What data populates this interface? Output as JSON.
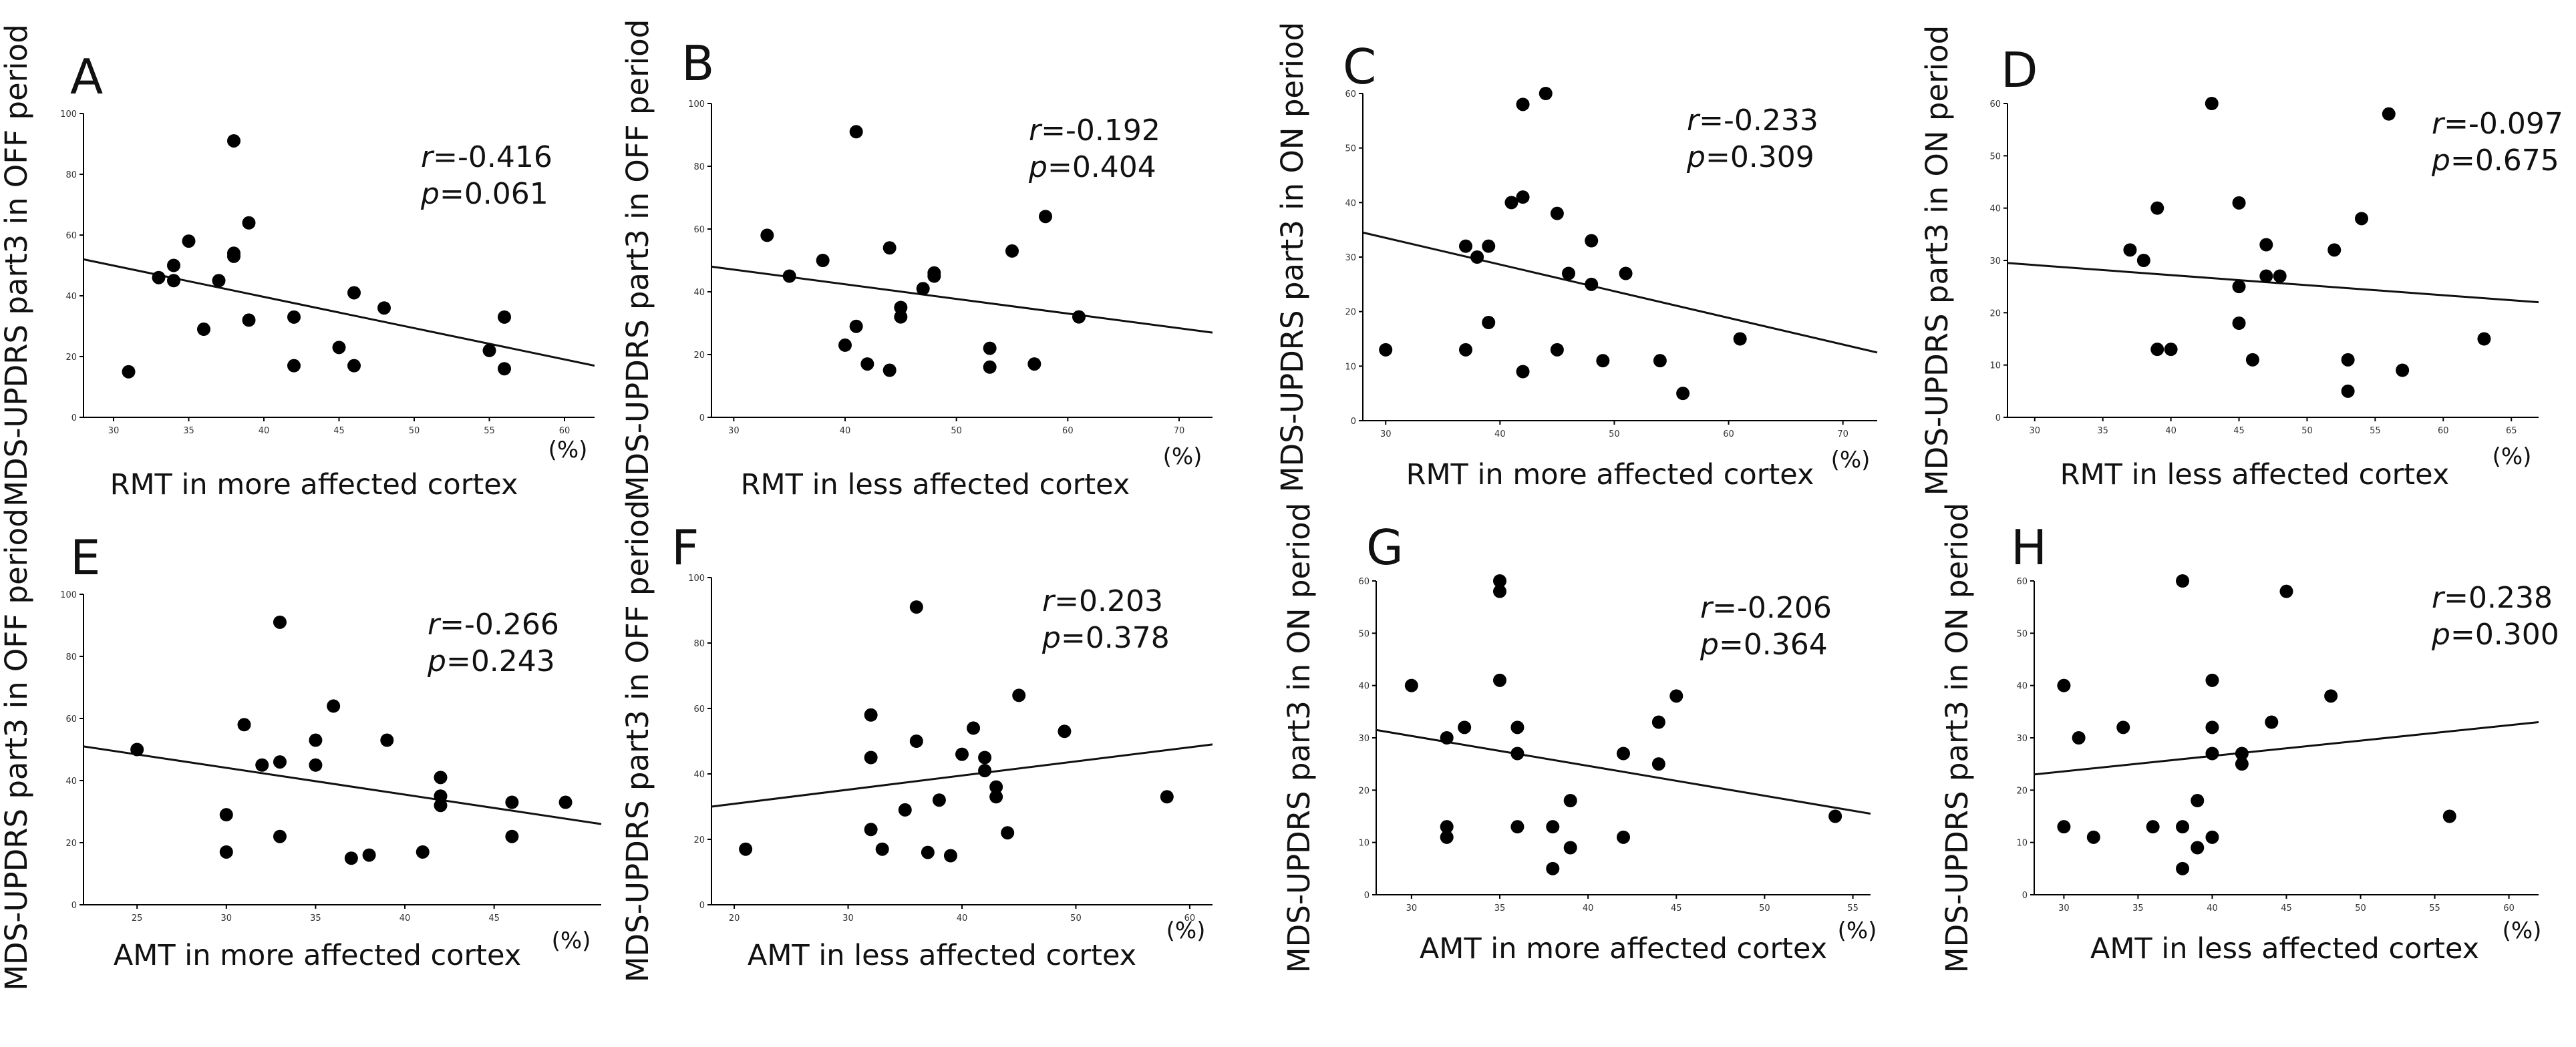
{
  "chart_data": [
    {
      "id": "A",
      "type": "scatter",
      "title": "A",
      "ylabel": "MDS-UPDRS  part3 in OFF period",
      "xlabel": "RMT in more affected cortex",
      "unit": "(%)",
      "xlim": [
        28,
        62
      ],
      "ylim": [
        0,
        100
      ],
      "xticks": [
        30,
        35,
        40,
        45,
        50,
        55,
        60
      ],
      "yticks": [
        0,
        20,
        40,
        60,
        80,
        100
      ],
      "stat_r": "-0.416",
      "stat_p": "0.061",
      "regression": [
        [
          28,
          52
        ],
        [
          62,
          17
        ]
      ],
      "points": [
        [
          31,
          15
        ],
        [
          33,
          46
        ],
        [
          34,
          50
        ],
        [
          34,
          45
        ],
        [
          35,
          58
        ],
        [
          36,
          29
        ],
        [
          37,
          45
        ],
        [
          38,
          91
        ],
        [
          38,
          54
        ],
        [
          38,
          53
        ],
        [
          39,
          64
        ],
        [
          39,
          32
        ],
        [
          42,
          33
        ],
        [
          42,
          17
        ],
        [
          45,
          23
        ],
        [
          46,
          41
        ],
        [
          46,
          17
        ],
        [
          48,
          36
        ],
        [
          55,
          22
        ],
        [
          56,
          33
        ],
        [
          56,
          16
        ]
      ]
    },
    {
      "id": "B",
      "type": "scatter",
      "title": "B",
      "ylabel": "MDS-UPDRS  part3 in OFF period",
      "xlabel": "RMT in less affected cortex",
      "unit": "(%)",
      "xlim": [
        28,
        73
      ],
      "ylim": [
        0,
        100
      ],
      "xticks": [
        30,
        40,
        50,
        60,
        70
      ],
      "yticks": [
        0,
        20,
        40,
        60,
        80,
        100
      ],
      "stat_r": "-0.192",
      "stat_p": "0.404",
      "regression": [
        [
          28,
          48
        ],
        [
          73,
          27
        ]
      ],
      "points": [
        [
          33,
          58
        ],
        [
          35,
          45
        ],
        [
          38,
          50
        ],
        [
          40,
          23
        ],
        [
          41,
          29
        ],
        [
          41,
          91
        ],
        [
          42,
          17
        ],
        [
          44,
          54
        ],
        [
          44,
          15
        ],
        [
          45,
          32
        ],
        [
          45,
          35
        ],
        [
          47,
          41
        ],
        [
          48,
          45
        ],
        [
          48,
          46
        ],
        [
          53,
          22
        ],
        [
          53,
          16
        ],
        [
          55,
          53
        ],
        [
          57,
          17
        ],
        [
          58,
          64
        ],
        [
          61,
          32
        ]
      ]
    },
    {
      "id": "C",
      "type": "scatter",
      "title": "C",
      "ylabel": "MDS-UPDRS  part3 in ON period",
      "xlabel": "RMT in more affected cortex",
      "unit": "(%)",
      "xlim": [
        28,
        73
      ],
      "ylim": [
        0,
        60
      ],
      "xticks": [
        30,
        40,
        50,
        60,
        70
      ],
      "yticks": [
        0,
        10,
        20,
        30,
        40,
        50,
        60
      ],
      "stat_r": "-0.233",
      "stat_p": "0.309",
      "regression": [
        [
          28,
          34.5
        ],
        [
          73,
          12.5
        ]
      ],
      "points": [
        [
          30,
          13
        ],
        [
          37,
          32
        ],
        [
          37,
          13
        ],
        [
          38,
          30
        ],
        [
          39,
          32
        ],
        [
          39,
          18
        ],
        [
          41,
          40
        ],
        [
          42,
          41
        ],
        [
          42,
          58
        ],
        [
          42,
          9
        ],
        [
          44,
          60
        ],
        [
          45,
          38
        ],
        [
          45,
          13
        ],
        [
          46,
          27
        ],
        [
          48,
          33
        ],
        [
          48,
          25
        ],
        [
          49,
          11
        ],
        [
          51,
          27
        ],
        [
          54,
          11
        ],
        [
          56,
          5
        ],
        [
          61,
          15
        ]
      ]
    },
    {
      "id": "D",
      "type": "scatter",
      "title": "D",
      "ylabel": "MDS-UPDRS  part3 in ON period",
      "xlabel": "RMT in less affected cortex",
      "unit": "(%)",
      "xlim": [
        28,
        67
      ],
      "ylim": [
        0,
        60
      ],
      "xticks": [
        30,
        35,
        40,
        45,
        50,
        55,
        60,
        65
      ],
      "yticks": [
        0,
        10,
        20,
        30,
        40,
        50,
        60
      ],
      "stat_r": "-0.097",
      "stat_p": "0.675",
      "regression": [
        [
          28,
          29.5
        ],
        [
          67,
          22
        ]
      ],
      "points": [
        [
          37,
          32
        ],
        [
          38,
          30
        ],
        [
          39,
          40
        ],
        [
          39,
          13
        ],
        [
          40,
          13
        ],
        [
          43,
          60
        ],
        [
          45,
          41
        ],
        [
          45,
          25
        ],
        [
          45,
          18
        ],
        [
          46,
          11
        ],
        [
          47,
          33
        ],
        [
          47,
          27
        ],
        [
          48,
          27
        ],
        [
          52,
          32
        ],
        [
          53,
          11
        ],
        [
          53,
          5
        ],
        [
          54,
          38
        ],
        [
          56,
          58
        ],
        [
          57,
          9
        ],
        [
          63,
          15
        ]
      ]
    },
    {
      "id": "E",
      "type": "scatter",
      "title": "E",
      "ylabel": "MDS-UPDRS  part3 in OFF period",
      "xlabel": "AMT in more affected cortex",
      "unit": "(%)",
      "xlim": [
        22,
        51
      ],
      "ylim": [
        0,
        100
      ],
      "xticks": [
        25,
        30,
        35,
        40,
        45
      ],
      "yticks": [
        0,
        20,
        40,
        60,
        80,
        100
      ],
      "stat_r": "-0.266",
      "stat_p": "0.243",
      "regression": [
        [
          22,
          51
        ],
        [
          51,
          26
        ]
      ],
      "points": [
        [
          25,
          50
        ],
        [
          30,
          29
        ],
        [
          30,
          17
        ],
        [
          31,
          58
        ],
        [
          32,
          45
        ],
        [
          33,
          46
        ],
        [
          33,
          91
        ],
        [
          33,
          22
        ],
        [
          35,
          53
        ],
        [
          35,
          45
        ],
        [
          36,
          64
        ],
        [
          37,
          15
        ],
        [
          38,
          16
        ],
        [
          39,
          53
        ],
        [
          41,
          17
        ],
        [
          42,
          41
        ],
        [
          42,
          35
        ],
        [
          42,
          32
        ],
        [
          46,
          33
        ],
        [
          46,
          22
        ],
        [
          49,
          33
        ]
      ]
    },
    {
      "id": "F",
      "type": "scatter",
      "title": "F",
      "ylabel": "MDS-UPDRS  part3 in OFF period",
      "xlabel": "AMT in less affected cortex",
      "unit": "(%)",
      "xlim": [
        18,
        62
      ],
      "ylim": [
        0,
        100
      ],
      "xticks": [
        20,
        30,
        40,
        50,
        60
      ],
      "yticks": [
        0,
        20,
        40,
        60,
        80,
        100
      ],
      "stat_r": "0.203",
      "stat_p": "0.378",
      "regression": [
        [
          18,
          30
        ],
        [
          62,
          49
        ]
      ],
      "points": [
        [
          21,
          17
        ],
        [
          32,
          58
        ],
        [
          32,
          45
        ],
        [
          32,
          23
        ],
        [
          33,
          17
        ],
        [
          35,
          29
        ],
        [
          36,
          50
        ],
        [
          36,
          91
        ],
        [
          37,
          16
        ],
        [
          38,
          32
        ],
        [
          39,
          15
        ],
        [
          40,
          46
        ],
        [
          41,
          54
        ],
        [
          42,
          45
        ],
        [
          42,
          41
        ],
        [
          43,
          36
        ],
        [
          43,
          33
        ],
        [
          44,
          22
        ],
        [
          45,
          64
        ],
        [
          49,
          53
        ],
        [
          58,
          33
        ]
      ]
    },
    {
      "id": "G",
      "type": "scatter",
      "title": "G",
      "ylabel": "MDS-UPDRS  part3 in ON period",
      "xlabel": "AMT in more affected cortex",
      "unit": "(%)",
      "xlim": [
        28,
        56
      ],
      "ylim": [
        0,
        60
      ],
      "xticks": [
        30,
        35,
        40,
        45,
        50,
        55
      ],
      "yticks": [
        0,
        10,
        20,
        30,
        40,
        50,
        60
      ],
      "stat_r": "-0.206",
      "stat_p": "0.364",
      "regression": [
        [
          28,
          31.5
        ],
        [
          56,
          15.5
        ]
      ],
      "points": [
        [
          30,
          40
        ],
        [
          32,
          30
        ],
        [
          32,
          13
        ],
        [
          32,
          11
        ],
        [
          33,
          32
        ],
        [
          35,
          60
        ],
        [
          35,
          58
        ],
        [
          35,
          41
        ],
        [
          36,
          32
        ],
        [
          36,
          27
        ],
        [
          36,
          13
        ],
        [
          38,
          13
        ],
        [
          38,
          5
        ],
        [
          39,
          18
        ],
        [
          39,
          9
        ],
        [
          42,
          27
        ],
        [
          42,
          11
        ],
        [
          44,
          33
        ],
        [
          44,
          25
        ],
        [
          45,
          38
        ],
        [
          54,
          15
        ]
      ]
    },
    {
      "id": "H",
      "type": "scatter",
      "title": "H",
      "ylabel": "MDS-UPDRS  part3 in ON period",
      "xlabel": "AMT in less affected cortex",
      "unit": "(%)",
      "xlim": [
        28,
        62
      ],
      "ylim": [
        0,
        60
      ],
      "xticks": [
        30,
        35,
        40,
        45,
        50,
        55,
        60
      ],
      "yticks": [
        0,
        10,
        20,
        30,
        40,
        50,
        60
      ],
      "stat_r": "0.238",
      "stat_p": "0.300",
      "regression": [
        [
          28,
          23
        ],
        [
          62,
          33
        ]
      ],
      "points": [
        [
          30,
          40
        ],
        [
          30,
          13
        ],
        [
          31,
          30
        ],
        [
          32,
          11
        ],
        [
          34,
          32
        ],
        [
          36,
          13
        ],
        [
          38,
          60
        ],
        [
          38,
          13
        ],
        [
          38,
          5
        ],
        [
          39,
          18
        ],
        [
          39,
          9
        ],
        [
          40,
          41
        ],
        [
          40,
          32
        ],
        [
          40,
          27
        ],
        [
          40,
          11
        ],
        [
          42,
          27
        ],
        [
          42,
          25
        ],
        [
          44,
          33
        ],
        [
          45,
          58
        ],
        [
          48,
          38
        ],
        [
          56,
          15
        ]
      ]
    }
  ]
}
